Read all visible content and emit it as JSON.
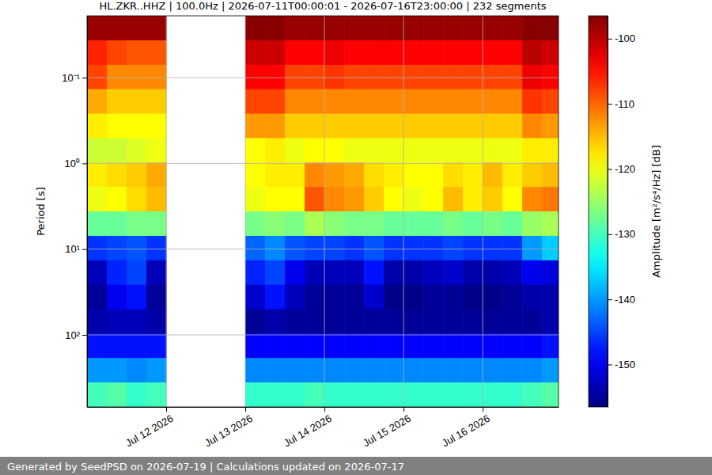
{
  "chart_data": {
    "type": "heatmap",
    "title": "HL.ZKR..HHZ | 100.0Hz | 2026-07-11T00:00:01 - 2026-07-16T23:00:00 | 232 segments",
    "ylabel": "Period [s]",
    "footer": "Generated by SeedPSD on 2026-07-19 | Calculations updated on 2026-07-17",
    "log": "y",
    "grid": true,
    "xlim": [
      "2026-07-11T00:00:01",
      "2026-07-16T23:00:00"
    ],
    "ylim": [
      0.019,
      692
    ],
    "xticks": [
      {
        "value": "2026-07-12T00:00:00",
        "label": "Jul 12 2026"
      },
      {
        "value": "2026-07-13T00:00:00",
        "label": "Jul 13 2026"
      },
      {
        "value": "2026-07-14T00:00:00",
        "label": "Jul 14 2026"
      },
      {
        "value": "2026-07-15T00:00:00",
        "label": "Jul 15 2026"
      },
      {
        "value": "2026-07-16T00:00:00",
        "label": "Jul 16 2026"
      }
    ],
    "yticks": [
      {
        "value": 0.1,
        "label": "10⁻¹"
      },
      {
        "value": 1,
        "label": "10⁰"
      },
      {
        "value": 10,
        "label": "10¹"
      },
      {
        "value": 100,
        "label": "10²"
      }
    ],
    "x_bins": [
      "2026-07-11T00:00:01",
      "2026-07-11T06:00:00",
      "2026-07-11T12:00:00",
      "2026-07-11T18:00:00",
      "2026-07-12T00:00:00",
      "2026-07-12T06:00:00",
      "2026-07-12T12:00:00",
      "2026-07-12T18:00:00",
      "2026-07-13T00:00:00",
      "2026-07-13T06:00:00",
      "2026-07-13T12:00:00",
      "2026-07-13T18:00:00",
      "2026-07-14T00:00:00",
      "2026-07-14T06:00:00",
      "2026-07-14T12:00:00",
      "2026-07-14T18:00:00",
      "2026-07-15T00:00:00",
      "2026-07-15T06:00:00",
      "2026-07-15T12:00:00",
      "2026-07-15T18:00:00",
      "2026-07-16T00:00:00",
      "2026-07-16T06:00:00",
      "2026-07-16T12:00:00",
      "2026-07-16T18:00:00",
      "2026-07-16T23:00:00"
    ],
    "y_bins": [
      0.019,
      0.0367,
      0.0708,
      0.136,
      0.263,
      0.507,
      0.977,
      1.88,
      3.63,
      7.0,
      13.5,
      26.0,
      50.1,
      96.6,
      186,
      359,
      692
    ],
    "cells": [
      [
        -98,
        -106,
        -108,
        -114,
        -118,
        -122,
        -118,
        -120,
        -128,
        -146,
        -153,
        -155,
        -154,
        -148,
        -140,
        -130
      ],
      [
        -98,
        -108,
        -112,
        -116,
        -119,
        -122,
        -117,
        -119,
        -128,
        -145,
        -147,
        -150,
        -153,
        -148,
        -140,
        -129
      ],
      [
        -98,
        -109,
        -112,
        -116,
        -119,
        -121,
        -116,
        -117,
        -127,
        -144,
        -145,
        -148,
        -153,
        -148,
        -141,
        -131
      ],
      [
        -98,
        -109,
        -112,
        -116,
        -119,
        -120,
        -114,
        -115,
        -127,
        -146,
        -153,
        -155,
        -154,
        -148,
        -140,
        -130
      ],
      null,
      null,
      null,
      null,
      [
        -97,
        -101,
        -104,
        -108,
        -113,
        -119,
        -119,
        -120,
        -127,
        -143,
        -147,
        -152,
        -155,
        -149,
        -141,
        -131
      ],
      [
        -97,
        -101,
        -104,
        -108,
        -113,
        -118,
        -118,
        -119,
        -126,
        -141,
        -145,
        -148,
        -154,
        -149,
        -141,
        -131
      ],
      [
        -98,
        -104,
        -108,
        -112,
        -116,
        -120,
        -118,
        -119,
        -127,
        -144,
        -150,
        -153,
        -155,
        -149,
        -141,
        -131
      ],
      [
        -98,
        -104,
        -108,
        -112,
        -116,
        -119,
        -112,
        -109,
        -124,
        -145,
        -153,
        -155,
        -155,
        -149,
        -141,
        -130
      ],
      [
        -98,
        -103,
        -107,
        -112,
        -116,
        -119,
        -113,
        -112,
        -126,
        -145,
        -153,
        -155,
        -155,
        -149,
        -141,
        -131
      ],
      [
        -98,
        -104,
        -108,
        -112,
        -116,
        -120,
        -114,
        -113,
        -127,
        -146,
        -153,
        -155,
        -155,
        -149,
        -141,
        -131
      ],
      [
        -98,
        -104,
        -108,
        -112,
        -116,
        -120,
        -117,
        -116,
        -127,
        -144,
        -148,
        -152,
        -155,
        -149,
        -141,
        -131
      ],
      [
        -98,
        -104,
        -108,
        -112,
        -116,
        -120,
        -118,
        -119,
        -128,
        -146,
        -154,
        -156,
        -155,
        -149,
        -141,
        -131
      ],
      [
        -98,
        -104,
        -108,
        -112,
        -116,
        -120,
        -119,
        -120,
        -128,
        -146,
        -154,
        -156,
        -155,
        -149,
        -141,
        -131
      ],
      [
        -98,
        -104,
        -108,
        -112,
        -116,
        -120,
        -119,
        -119,
        -128,
        -146,
        -153,
        -155,
        -155,
        -149,
        -141,
        -131
      ],
      [
        -98,
        -104,
        -108,
        -112,
        -116,
        -120,
        -117,
        -115,
        -127,
        -145,
        -152,
        -155,
        -155,
        -149,
        -141,
        -131
      ],
      [
        -98,
        -104,
        -108,
        -112,
        -116,
        -120,
        -118,
        -118,
        -128,
        -146,
        -154,
        -156,
        -155,
        -149,
        -141,
        -131
      ],
      [
        -98,
        -104,
        -108,
        -112,
        -116,
        -120,
        -115,
        -116,
        -127,
        -146,
        -154,
        -156,
        -155,
        -149,
        -141,
        -131
      ],
      [
        -98,
        -104,
        -108,
        -112,
        -116,
        -120,
        -118,
        -119,
        -128,
        -146,
        -153,
        -155,
        -155,
        -149,
        -141,
        -131
      ],
      [
        -97,
        -100,
        -103,
        -107,
        -112,
        -118,
        -116,
        -112,
        -125,
        -140,
        -150,
        -154,
        -155,
        -149,
        -141,
        -130
      ],
      [
        -97,
        -101,
        -104,
        -108,
        -113,
        -118,
        -115,
        -111,
        -124,
        -137,
        -151,
        -154,
        -154,
        -148,
        -140,
        -129
      ]
    ],
    "colorbar": {
      "label": "Amplitude [m²/s⁴/Hz] [dB]",
      "range": [
        -156.5,
        -96.5
      ],
      "ticks": [
        -150,
        -140,
        -130,
        -120,
        -110,
        -100
      ]
    }
  }
}
